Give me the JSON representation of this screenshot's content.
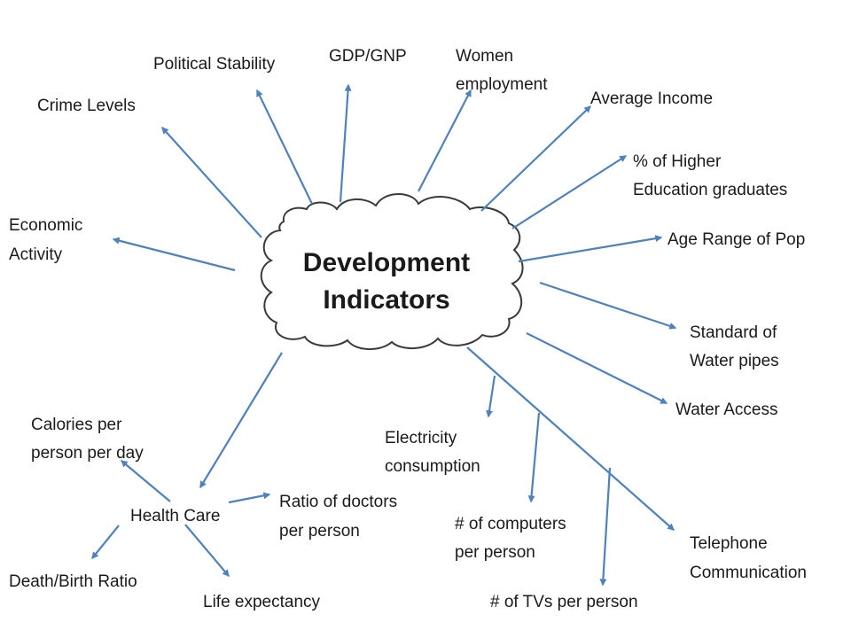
{
  "center": {
    "line1": "Development",
    "line2": "Indicators"
  },
  "indicators": {
    "crime_levels": "Crime Levels",
    "political_stability": "Political Stability",
    "gdp_gnp": "GDP/GNP",
    "women_employment": [
      "Women",
      "employment"
    ],
    "average_income": "Average Income",
    "higher_education": [
      "% of Higher",
      "Education graduates"
    ],
    "age_range": "Age Range of Pop",
    "economic_activity": [
      "Economic",
      "Activity"
    ],
    "water_pipes": [
      "Standard of",
      "Water pipes"
    ],
    "water_access": "Water Access",
    "electricity": [
      "Electricity",
      "consumption"
    ],
    "computers": [
      "# of computers",
      "per person"
    ],
    "tvs": "# of TVs per person",
    "telephone": [
      "Telephone",
      "Communication"
    ],
    "health_care": "Health Care"
  },
  "health_care_branches": {
    "calories": [
      "Calories per",
      "person per day"
    ],
    "doctors_ratio": [
      "Ratio of doctors",
      "per person"
    ],
    "death_birth": "Death/Birth Ratio",
    "life_expectancy": "Life expectancy"
  },
  "colors": {
    "arrow": "#4f81bd",
    "cloud_outline": "#3a3a3a",
    "text": "#1a1a1a"
  }
}
